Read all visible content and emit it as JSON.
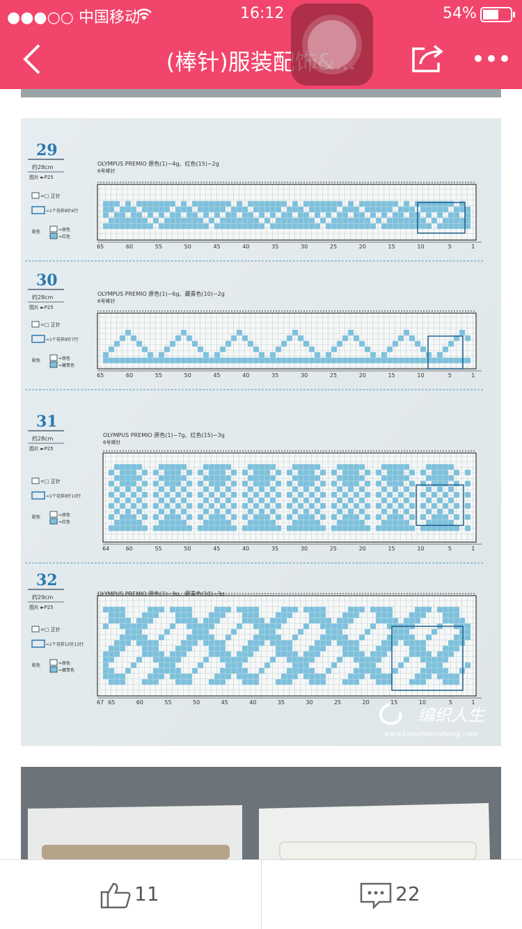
{
  "status_bar": {
    "carrier": "●●●○○ 中国移动",
    "time": "16:12",
    "battery": "54%"
  },
  "nav": {
    "title": "(棒针)服装配饰&..."
  },
  "patterns": [
    {
      "number": "29",
      "size": "约28cm",
      "ref": "图片 ►P25",
      "yarn": "OLYMPUS PREMIO 原色(1)−4g、红色(15)−2g",
      "needle": "6号棒针",
      "legend": [
        "=□ 正针",
        "=1个花样8针6行",
        "=原色",
        "=红色"
      ],
      "color_label": "配色",
      "axis": [
        "65",
        "60",
        "55",
        "50",
        "45",
        "40",
        "35",
        "30",
        "25",
        "20",
        "15",
        "10",
        "5",
        "1"
      ]
    },
    {
      "number": "30",
      "size": "约28cm",
      "ref": "图片 ►P25",
      "yarn": "OLYMPUS PREMIO 原色(1)−6g、藏青色(10)−2g",
      "needle": "6号棒针",
      "legend": [
        "=□ 正针",
        "=1个花样8针7行",
        "=原色",
        "=藏青色"
      ],
      "color_label": "配色",
      "axis": [
        "65",
        "60",
        "55",
        "50",
        "45",
        "40",
        "35",
        "30",
        "25",
        "20",
        "15",
        "10",
        "5",
        "1"
      ]
    },
    {
      "number": "31",
      "size": "约28cm",
      "ref": "图片 ►P25",
      "yarn": "OLYMPUS PREMIO 原色(1)−7g、红色(15)−3g",
      "needle": "6号棒针",
      "legend": [
        "=□ 正针",
        "=1个花样8针10行",
        "=原色",
        "=红色"
      ],
      "color_label": "配色",
      "axis": [
        "64",
        "60",
        "55",
        "50",
        "45",
        "40",
        "35",
        "30",
        "25",
        "20",
        "15",
        "10",
        "5",
        "1"
      ]
    },
    {
      "number": "32",
      "size": "约29cm",
      "ref": "图片 ►P25",
      "yarn": "OLYMPUS PREMIO 原色(1)−9g、藏青色(10)−3g",
      "needle": "6号棒针",
      "legend": [
        "=□ 正针",
        "=1个花样12针13行",
        "=原色",
        "=藏青色"
      ],
      "color_label": "配色",
      "axis": [
        "67",
        "65",
        "60",
        "55",
        "50",
        "45",
        "40",
        "35",
        "30",
        "25",
        "20",
        "15",
        "10",
        "5",
        "1"
      ]
    }
  ],
  "watermark": {
    "logo": "编织人生",
    "url": "www.bianzhirensheng.com"
  },
  "footer": {
    "likes": "11",
    "comments": "22"
  }
}
